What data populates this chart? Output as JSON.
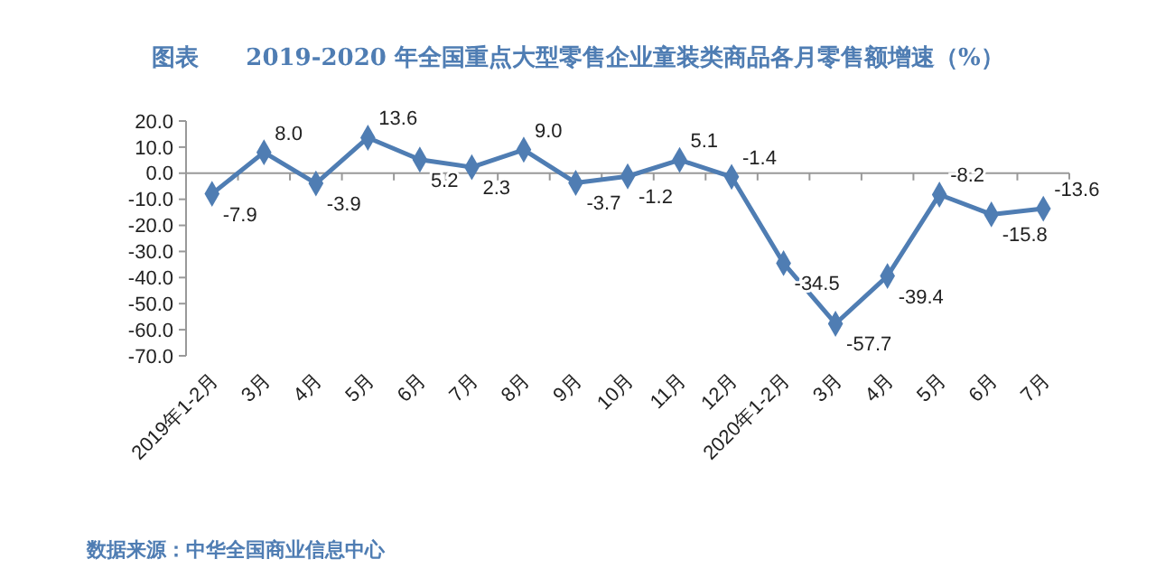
{
  "chart_data": {
    "type": "line",
    "title": "图表　　2019-2020 年全国重点大型零售企业童装类商品各月零售额增速（%）",
    "categories": [
      "2019年1-2月",
      "3月",
      "4月",
      "5月",
      "6月",
      "7月",
      "8月",
      "9月",
      "10月",
      "11月",
      "12月",
      "2020年1-2月",
      "3月",
      "4月",
      "5月",
      "6月",
      "7月"
    ],
    "series": [
      {
        "color": "#4f7db3",
        "values": [
          -7.9,
          8.0,
          -3.9,
          13.6,
          5.2,
          2.3,
          9.0,
          -3.7,
          -1.2,
          5.1,
          -1.4,
          -34.5,
          -57.7,
          -39.4,
          -8.2,
          -15.8,
          -13.6
        ],
        "value_labels": [
          "-7.9",
          "8.0",
          "-3.9",
          "13.6",
          "5.2",
          "2.3",
          "9.0",
          "-3.7",
          "-1.2",
          "5.1",
          "-1.4",
          "-34.5",
          "-57.7",
          "-39.4",
          "-8.2",
          "-15.8",
          "-13.6"
        ]
      }
    ],
    "ylim": [
      -70,
      20
    ],
    "yticks": [
      {
        "value": 20,
        "label": "20.0"
      },
      {
        "value": 10,
        "label": "10.0"
      },
      {
        "value": 0,
        "label": "0.0"
      },
      {
        "value": -10,
        "label": "-10.0"
      },
      {
        "value": -20,
        "label": "-20.0"
      },
      {
        "value": -30,
        "label": "-30.0"
      },
      {
        "value": -40,
        "label": "-40.0"
      },
      {
        "value": -50,
        "label": "-50.0"
      },
      {
        "value": -60,
        "label": "-60.0"
      },
      {
        "value": -70,
        "label": "-70.0"
      }
    ],
    "marker": "diamond",
    "annotations": [
      "数据来源：中华全国商业信息中心"
    ]
  }
}
